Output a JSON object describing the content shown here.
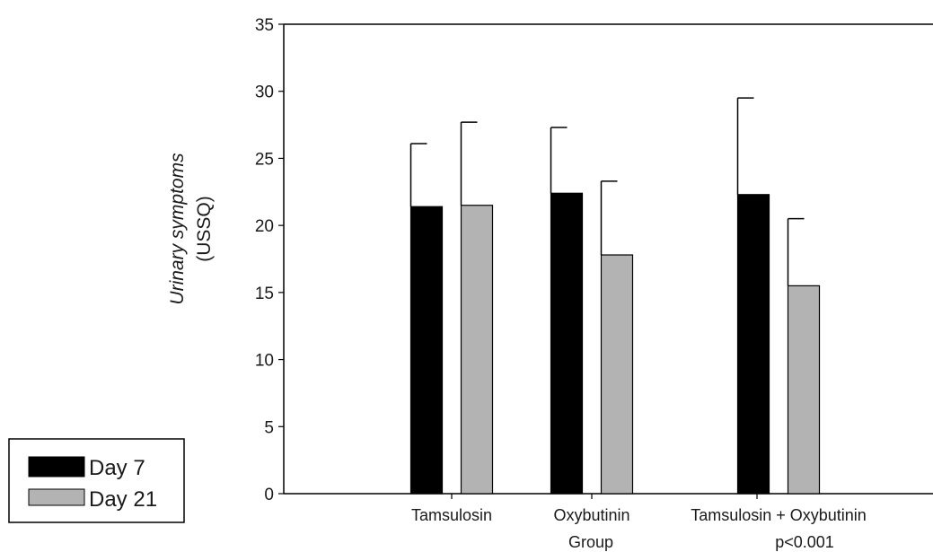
{
  "chart_data": {
    "type": "bar",
    "ylabel_line1": "Urinary symptoms",
    "ylabel_line2": "(USSQ)",
    "xlabel": "Group",
    "annotation": "p<0.001",
    "categories": [
      "Tamsulosin",
      "Oxybutinin",
      "Tamsulosin + Oxybutinin"
    ],
    "series": [
      {
        "name": "Day 7",
        "color": "#000000",
        "values": [
          21.4,
          22.4,
          22.3
        ],
        "error": [
          4.7,
          4.9,
          7.2
        ]
      },
      {
        "name": "Day 21",
        "color": "#b3b3b3",
        "values": [
          21.5,
          17.8,
          15.5
        ],
        "error": [
          6.2,
          5.5,
          5.0
        ]
      }
    ],
    "yticks": [
      "0",
      "5",
      "10",
      "15",
      "20",
      "25",
      "30",
      "35"
    ],
    "ylim": [
      0,
      35
    ],
    "grid": false,
    "legend_position": "bottom-left"
  }
}
